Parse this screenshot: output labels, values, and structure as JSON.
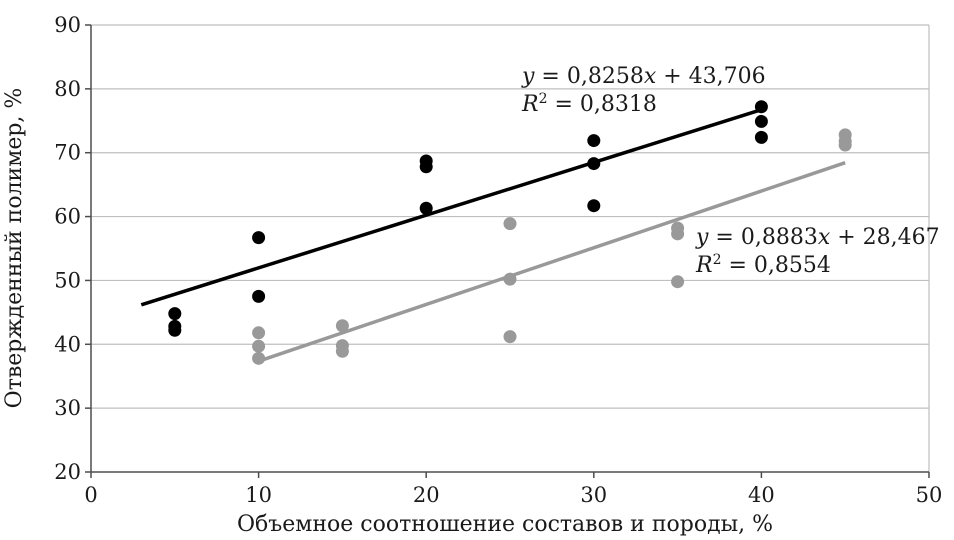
{
  "chart_data": {
    "type": "scatter",
    "xlabel": "Объемное соотношение составов и породы, %",
    "ylabel": "Отвержденный полимер, %",
    "xlim": [
      0,
      50
    ],
    "ylim": [
      20,
      90
    ],
    "x_ticks": [
      0,
      10,
      20,
      30,
      40,
      50
    ],
    "y_ticks": [
      20,
      30,
      40,
      50,
      60,
      70,
      80,
      90
    ],
    "x_tick_labels": [
      "0",
      "10",
      "20",
      "30",
      "40",
      "50"
    ],
    "y_tick_labels": [
      "20",
      "30",
      "40",
      "50",
      "60",
      "70",
      "80",
      "90"
    ],
    "grid": "horizontal",
    "series": [
      {
        "color": "#000000",
        "points": [
          [
            5,
            44.8
          ],
          [
            5,
            42.8
          ],
          [
            5,
            42.2
          ],
          [
            10,
            56.7
          ],
          [
            10,
            47.5
          ],
          [
            20,
            68.7
          ],
          [
            20,
            67.8
          ],
          [
            20,
            61.3
          ],
          [
            30,
            71.9
          ],
          [
            30,
            68.3
          ],
          [
            30,
            61.7
          ],
          [
            40,
            77.2
          ],
          [
            40,
            74.9
          ],
          [
            40,
            72.4
          ]
        ],
        "trendline": {
          "slope": 0.8258,
          "intercept": 43.706,
          "x_range": [
            3,
            40
          ],
          "equation": "y = 0,8258x + 43,706",
          "r2_label": "R² = 0,8318"
        }
      },
      {
        "color": "#999999",
        "points": [
          [
            10,
            41.8
          ],
          [
            10,
            39.7
          ],
          [
            10,
            37.8
          ],
          [
            15,
            42.9
          ],
          [
            15,
            39.8
          ],
          [
            15,
            38.9
          ],
          [
            25,
            58.9
          ],
          [
            25,
            50.2
          ],
          [
            25,
            41.2
          ],
          [
            35,
            58.2
          ],
          [
            35,
            57.3
          ],
          [
            35,
            49.8
          ],
          [
            45,
            72.8
          ],
          [
            45,
            71.8
          ],
          [
            45,
            71.2
          ]
        ],
        "trendline": {
          "slope": 0.8883,
          "intercept": 28.467,
          "x_range": [
            10,
            45
          ],
          "equation": "y = 0,8883x + 28,467",
          "r2_label": "R² = 0,8554"
        }
      }
    ]
  }
}
